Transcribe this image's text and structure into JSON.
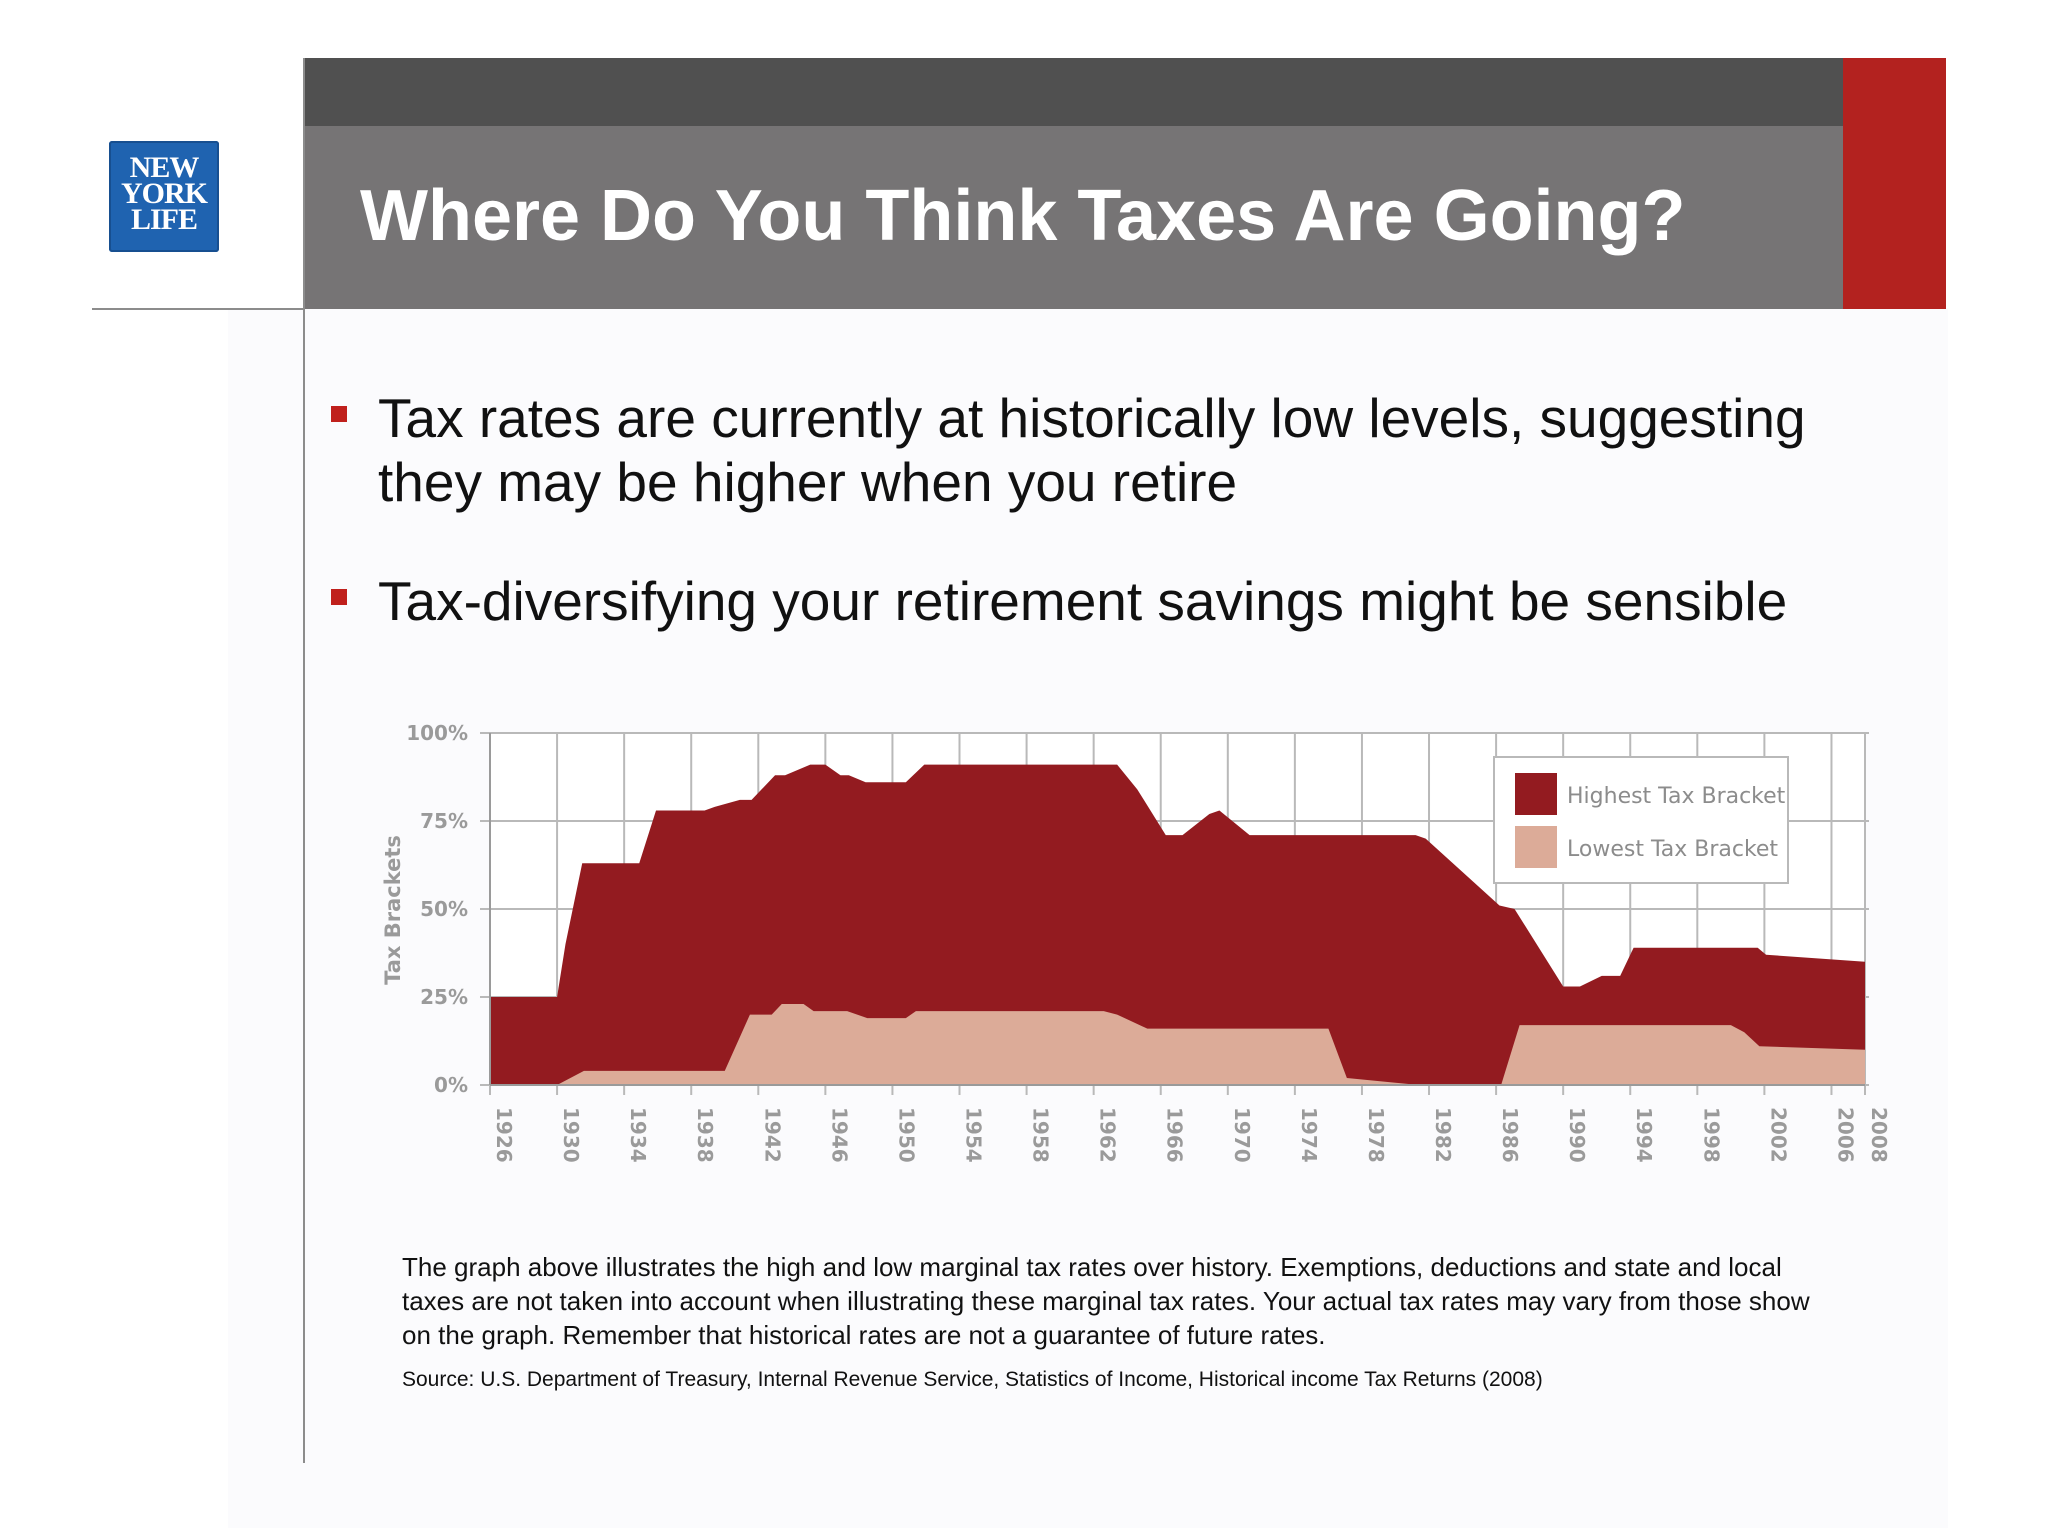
{
  "logo": {
    "lines": [
      "NEW",
      "YORK",
      "LIFE"
    ],
    "color": "#1f63b0"
  },
  "header": {
    "title": "Where Do You Think Taxes Are Going?",
    "colors": {
      "dark_band": "#505050",
      "title_band": "#767475",
      "accent": "#b3221f"
    }
  },
  "bullets": [
    "Tax rates are currently at historically low levels, suggesting they may be higher when you retire",
    "Tax-diversifying your retirement savings might be sensible"
  ],
  "chart_data": {
    "type": "area",
    "ylabel": "Tax Brackets",
    "xlabel": "",
    "ylim": [
      0,
      100
    ],
    "xlim": [
      1926,
      2008
    ],
    "y_ticks": [
      {
        "value": 100,
        "label": "100%"
      },
      {
        "value": 75,
        "label": "75%"
      },
      {
        "value": 50,
        "label": "50%"
      },
      {
        "value": 25,
        "label": "25%"
      },
      {
        "value": 0,
        "label": "0%"
      }
    ],
    "x_ticks": [
      "1926",
      "1930",
      "1934",
      "1938",
      "1942",
      "1946",
      "1950",
      "1954",
      "1958",
      "1962",
      "1966",
      "1970",
      "1974",
      "1978",
      "1982",
      "1986",
      "1990",
      "1994",
      "1998",
      "2002",
      "2006",
      "2008"
    ],
    "grid": true,
    "legend_position": "top-right",
    "series": [
      {
        "name": "Highest Tax Bracket",
        "color": "#931b20",
        "x": [
          1926,
          1929.6,
          1930,
          1930.5,
          1931.5,
          1932.1,
          1934.9,
          1935.9,
          1938.8,
          1939.4,
          1940.9,
          1941.6,
          1943,
          1943.6,
          1945.1,
          1946,
          1946.9,
          1947.4,
          1948.4,
          1949.1,
          1950.8,
          1951.9,
          1963.4,
          1964.6,
          1966.3,
          1967.3,
          1968.9,
          1969.5,
          1971.3,
          1981.2,
          1981.8,
          1986.2,
          1987.1,
          1990,
          1991,
          1992.3,
          1993.4,
          1994.2,
          2001.6,
          2002.1,
          2008
        ],
        "values": [
          25,
          25,
          25,
          40,
          63,
          63,
          63,
          78,
          78,
          79,
          81,
          81,
          88,
          88,
          91,
          91,
          88,
          88,
          86,
          86,
          86,
          91,
          91,
          84,
          71,
          71,
          77,
          78,
          71,
          71,
          70,
          51,
          50,
          28,
          28,
          31,
          31,
          39,
          39,
          37,
          35
        ]
      },
      {
        "name": "Lowest Tax Bracket",
        "color": "#dcab98",
        "x": [
          1926,
          1930,
          1931.6,
          1940,
          1941.5,
          1942.8,
          1943.4,
          1944.7,
          1945.3,
          1946.5,
          1947.3,
          1948.5,
          1949.8,
          1950.8,
          1951.4,
          1962.6,
          1963.4,
          1965.2,
          1976,
          1977.1,
          1981.4,
          1986.3,
          1987.4,
          1990.9,
          1998.1,
          2000,
          2000.8,
          2001.7,
          2008
        ],
        "values": [
          0,
          0,
          4,
          4,
          20,
          20,
          23,
          23,
          21,
          21,
          21,
          19,
          19,
          19,
          21,
          21,
          20,
          16,
          16,
          2,
          0,
          0,
          17,
          17,
          17,
          17,
          15,
          11,
          10
        ]
      }
    ]
  },
  "caption": "The graph above illustrates the high and low marginal tax rates over history.  Exemptions, deductions and state and local taxes are not taken into account when illustrating these marginal tax rates.  Your actual tax rates may vary from those show on the graph.  Remember that historical rates are not a guarantee of future rates.",
  "source": "Source: U.S. Department of Treasury, Internal Revenue Service, Statistics of Income, Historical income Tax Returns (2008)"
}
